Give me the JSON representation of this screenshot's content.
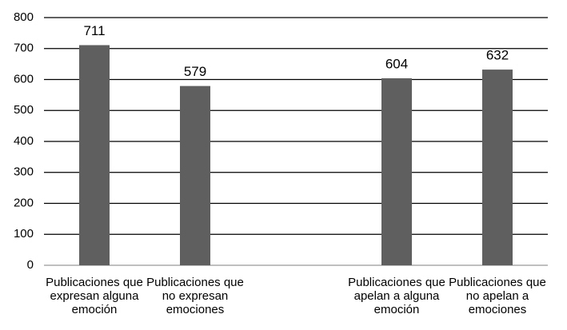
{
  "chart_data": {
    "type": "bar",
    "categories": [
      "Publicaciones que expresan alguna emoción",
      "Publicaciones que no expresan emociones",
      null,
      "Publicaciones que apelan a alguna emoción",
      "Publicaciones que no apelan a emociones"
    ],
    "values": [
      711,
      579,
      null,
      604,
      632
    ],
    "color": "#5f5f5f",
    "ylim": [
      0,
      800
    ],
    "yticks": [
      0,
      100,
      200,
      300,
      400,
      500,
      600,
      700,
      800
    ],
    "grid": true
  }
}
